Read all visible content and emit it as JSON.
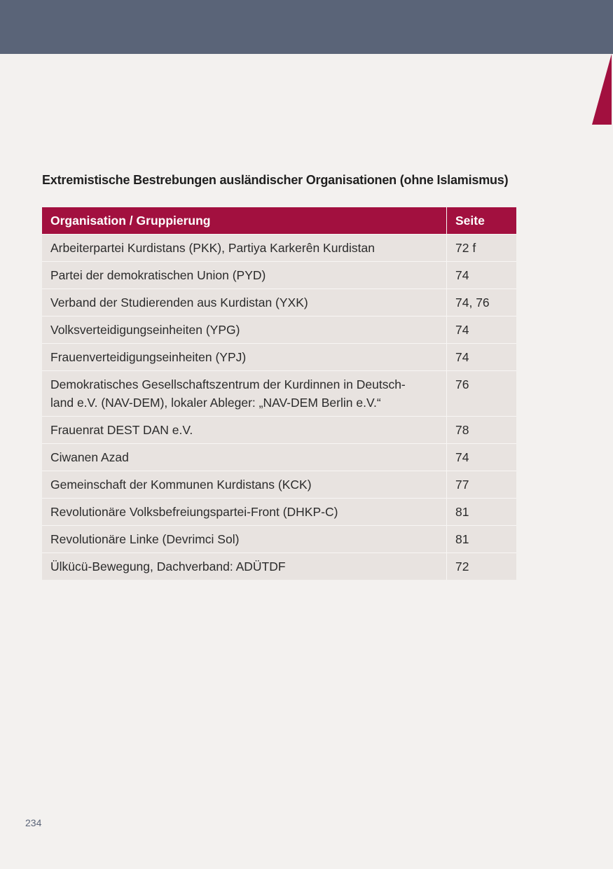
{
  "title": "Extremistische Bestrebungen ausländischer Organisationen (ohne Islamismus)",
  "table": {
    "header": [
      "Organisation / Gruppierung",
      "Seite"
    ],
    "rows": [
      [
        "Arbeiterpartei Kurdistans (PKK), Partiya Karkerên Kurdistan",
        "72 f"
      ],
      [
        "Partei der demokratischen Union (PYD)",
        "74"
      ],
      [
        "Verband der Studierenden aus Kurdistan (YXK)",
        "74, 76"
      ],
      [
        "Volksverteidigungseinheiten (YPG)",
        "74"
      ],
      [
        "Frauenverteidigungseinheiten (YPJ)",
        "74"
      ],
      [
        "Demokratisches Gesellschaftszentrum der Kurdinnen in Deutsch-\nland e.V. (NAV-DEM), lokaler Ableger: „NAV-DEM Berlin e.V.“",
        "76"
      ],
      [
        "Frauenrat DEST DAN e.V.",
        "78"
      ],
      [
        "Ciwanen Azad",
        "74"
      ],
      [
        "Gemeinschaft der Kommunen Kurdistans (KCK)",
        "77"
      ],
      [
        "Revolutionäre Volksbefreiungspartei-Front (DHKP-C)",
        "81"
      ],
      [
        "Revolutionäre Linke (Devrimci Sol)",
        "81"
      ],
      [
        "Ülkücü-Bewegung, Dachverband: ADÜTDF",
        "72"
      ]
    ]
  },
  "page_number": "234"
}
